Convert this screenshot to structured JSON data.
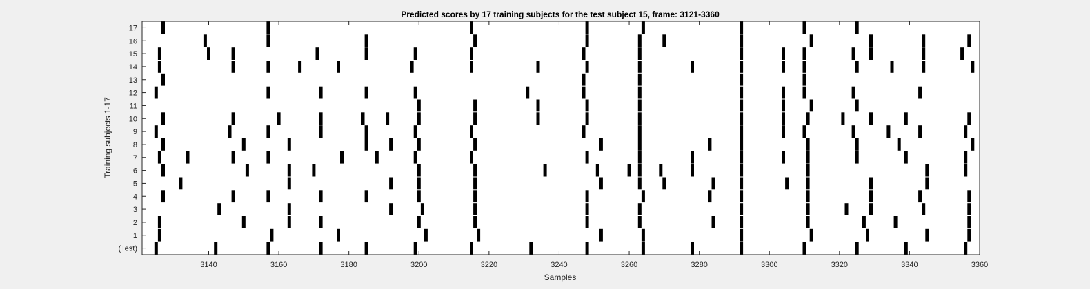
{
  "chart_data": {
    "type": "heatmap",
    "title": "Predicted scores by 17 training subjects for the test subject 15, frame: 3121-3360",
    "xlabel": "Samples",
    "ylabel": "Training subjects 1-17",
    "xlim": [
      3121,
      3360
    ],
    "xticks": [
      3140,
      3160,
      3180,
      3200,
      3220,
      3240,
      3260,
      3280,
      3300,
      3320,
      3340,
      3360
    ],
    "yticklabels": [
      "(Test)",
      "1",
      "2",
      "3",
      "4",
      "5",
      "6",
      "7",
      "8",
      "9",
      "10",
      "11",
      "12",
      "13",
      "14",
      "15",
      "16",
      "17"
    ],
    "colors": {
      "background": "#ffffff",
      "mark": "#000000",
      "figure": "#f0f0f0",
      "axis": "#262626"
    },
    "rows": [
      {
        "label": "(Test)",
        "x": [
          3125,
          3142,
          3157,
          3172,
          3185,
          3199,
          3215,
          3232,
          3248,
          3264,
          3278,
          3292,
          3310,
          3325,
          3339,
          3356
        ]
      },
      {
        "label": "1",
        "x": [
          3126,
          3158,
          3177,
          3202,
          3217,
          3252,
          3264,
          3292,
          3312,
          3328,
          3345,
          3357
        ]
      },
      {
        "label": "2",
        "x": [
          3126,
          3150,
          3163,
          3172,
          3200,
          3216,
          3248,
          3263,
          3284,
          3292,
          3311,
          3327,
          3336,
          3357
        ]
      },
      {
        "label": "3",
        "x": [
          3143,
          3163,
          3192,
          3201,
          3216,
          3248,
          3263,
          3292,
          3311,
          3322,
          3329,
          3344,
          3357
        ]
      },
      {
        "label": "4",
        "x": [
          3127,
          3147,
          3157,
          3172,
          3185,
          3200,
          3216,
          3248,
          3264,
          3283,
          3292,
          3311,
          3329,
          3343,
          3357
        ]
      },
      {
        "label": "5",
        "x": [
          3132,
          3163,
          3192,
          3200,
          3216,
          3252,
          3263,
          3270,
          3284,
          3292,
          3305,
          3311,
          3329,
          3345
        ]
      },
      {
        "label": "6",
        "x": [
          3127,
          3151,
          3163,
          3170,
          3200,
          3216,
          3236,
          3251,
          3260,
          3263,
          3269,
          3278,
          3292,
          3311,
          3345,
          3356
        ]
      },
      {
        "label": "7",
        "x": [
          3126,
          3134,
          3147,
          3157,
          3178,
          3188,
          3199,
          3215,
          3248,
          3263,
          3278,
          3292,
          3304,
          3311,
          3325,
          3339,
          3356
        ]
      },
      {
        "label": "8",
        "x": [
          3127,
          3150,
          3163,
          3185,
          3192,
          3200,
          3216,
          3252,
          3263,
          3283,
          3292,
          3311,
          3325,
          3337,
          3358
        ]
      },
      {
        "label": "9",
        "x": [
          3125,
          3146,
          3157,
          3172,
          3185,
          3199,
          3215,
          3247,
          3263,
          3292,
          3304,
          3310,
          3324,
          3334,
          3343,
          3356
        ]
      },
      {
        "label": "10",
        "x": [
          3127,
          3147,
          3160,
          3172,
          3184,
          3191,
          3200,
          3216,
          3234,
          3248,
          3263,
          3292,
          3304,
          3311,
          3321,
          3329,
          3339,
          3357
        ]
      },
      {
        "label": "11",
        "x": [
          3200,
          3216,
          3234,
          3248,
          3263,
          3292,
          3304,
          3312,
          3325
        ]
      },
      {
        "label": "12",
        "x": [
          3125,
          3157,
          3172,
          3185,
          3199,
          3231,
          3247,
          3263,
          3292,
          3304,
          3310,
          3324,
          3343
        ]
      },
      {
        "label": "13",
        "x": [
          3127,
          3247,
          3263,
          3292,
          3310
        ]
      },
      {
        "label": "14",
        "x": [
          3126,
          3147,
          3157,
          3166,
          3177,
          3198,
          3215,
          3234,
          3248,
          3263,
          3278,
          3292,
          3304,
          3310,
          3325,
          3335,
          3344,
          3358
        ]
      },
      {
        "label": "15",
        "x": [
          3126,
          3140,
          3147,
          3171,
          3185,
          3199,
          3215,
          3247,
          3263,
          3292,
          3304,
          3310,
          3324,
          3329,
          3344,
          3355
        ]
      },
      {
        "label": "16",
        "x": [
          3139,
          3157,
          3185,
          3216,
          3248,
          3263,
          3270,
          3292,
          3312,
          3329,
          3344,
          3357
        ]
      },
      {
        "label": "17",
        "x": [
          3127,
          3157,
          3215,
          3248,
          3264,
          3292,
          3310,
          3325
        ]
      }
    ]
  }
}
